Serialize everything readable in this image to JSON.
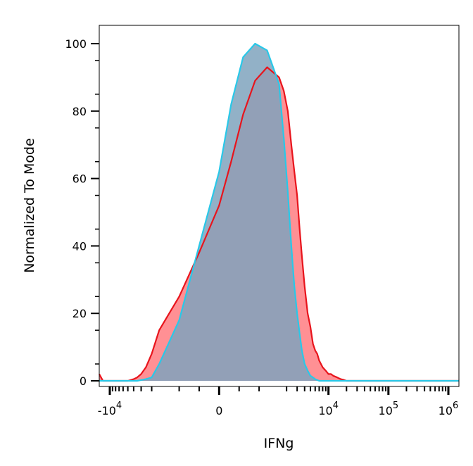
{
  "chart_data": {
    "type": "area",
    "xlabel": "IFNg",
    "ylabel": "Normalized To Mode",
    "x_scale": "biexponential",
    "ylim": [
      0,
      100
    ],
    "y_ticks": [
      0,
      20,
      40,
      60,
      80,
      100
    ],
    "x_ticks": [
      {
        "base": "-10",
        "exp": "4",
        "value": -10000
      },
      {
        "base": "0",
        "exp": "",
        "value": 0
      },
      {
        "base": "10",
        "exp": "4",
        "value": 10000
      },
      {
        "base": "10",
        "exp": "5",
        "value": 100000
      },
      {
        "base": "10",
        "exp": "6",
        "value": 1000000
      }
    ],
    "grid": false,
    "legend": "none",
    "series": [
      {
        "color": "#e8141c",
        "fill": "#ff8a8e",
        "x": [
          -15000,
          -14000,
          -13000,
          -12000,
          -11000,
          -10000,
          -7000,
          -5000,
          -4000,
          -3500,
          -3000,
          -2500,
          -2000,
          -1500,
          -1000,
          -500,
          0,
          300,
          600,
          900,
          1200,
          1500,
          1800,
          2100,
          2400,
          2700,
          3000,
          3300,
          3600,
          4000,
          4500,
          5000,
          5500,
          6000,
          6500,
          7000,
          8000,
          9000,
          10000,
          11000,
          12000,
          14000,
          16000,
          18000,
          20000,
          25000,
          30000,
          40000,
          60000,
          100000,
          300000,
          1000000,
          1500000
        ],
        "y": [
          2,
          1,
          0,
          0,
          0,
          0,
          0,
          0,
          0.5,
          1,
          2,
          4,
          8,
          15,
          25,
          38,
          52,
          65,
          79,
          89,
          93,
          90,
          86,
          80,
          70,
          62,
          55,
          45,
          37,
          28,
          20,
          16,
          11,
          9,
          8,
          6,
          4,
          3,
          2,
          2,
          1.5,
          1,
          0.5,
          0.3,
          0,
          0,
          0,
          0,
          0,
          0,
          0,
          0,
          0
        ]
      },
      {
        "color": "#29c8e8",
        "fill": "#7fa3bd",
        "x": [
          -15000,
          -10000,
          -5000,
          -3500,
          -2500,
          -2000,
          -1500,
          -1000,
          -500,
          0,
          300,
          600,
          900,
          1200,
          1500,
          1800,
          2100,
          2400,
          2700,
          3000,
          3300,
          3600,
          4000,
          4500,
          5000,
          5500,
          6000,
          7000,
          8000,
          10000,
          20000,
          100000,
          1000000,
          1500000
        ],
        "y": [
          0,
          0,
          0,
          0,
          0.5,
          1,
          5,
          18,
          40,
          62,
          82,
          96,
          100,
          98,
          88,
          72,
          56,
          40,
          28,
          20,
          14,
          9,
          5,
          3,
          1.5,
          1,
          0.5,
          0,
          0,
          0,
          0,
          0,
          0,
          0
        ]
      }
    ]
  }
}
